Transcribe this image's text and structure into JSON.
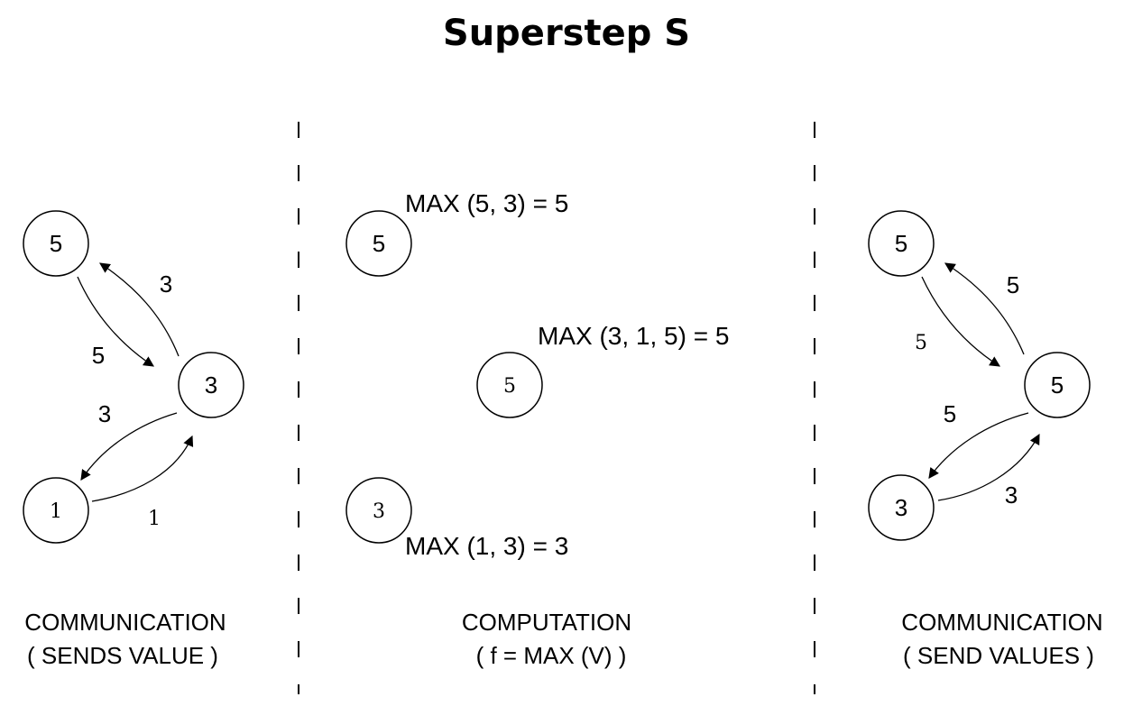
{
  "title": "Superstep S",
  "panels": {
    "left": {
      "nodes": [
        "5",
        "3",
        "1"
      ],
      "edge_labels": {
        "to_top": "3",
        "to_mid_from_top": "5",
        "to_bottom": "3",
        "to_mid_from_bottom": "1"
      },
      "caption_line1": "COMMUNICATION",
      "caption_line2": "( SENDS VALUE )"
    },
    "middle": {
      "nodes": [
        "5",
        "5",
        "3"
      ],
      "formulas": [
        "MAX (5, 3) = 5",
        "MAX (3, 1, 5) = 5",
        "MAX (1, 3) = 3"
      ],
      "caption_line1": "COMPUTATION",
      "caption_line2": "( f = MAX (V) )"
    },
    "right": {
      "nodes": [
        "5",
        "5",
        "3"
      ],
      "edge_labels": {
        "to_top": "5",
        "to_mid_from_top": "5",
        "to_bottom": "5",
        "to_mid_from_bottom": "3"
      },
      "caption_line1": "COMMUNICATION",
      "caption_line2": "( SEND VALUES )"
    }
  }
}
